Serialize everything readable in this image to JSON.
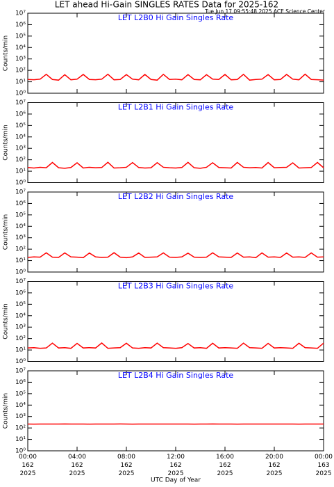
{
  "chart_data": {
    "type": "line",
    "title": "LET ahead Hi-Gain SINGLES RATES Data for 2025-162",
    "subtitle": "Tue Jun 17 09:55:48 2025 ACE Science Center",
    "x_label": "UTC Day of Year",
    "log_y": true,
    "x": [
      0,
      0.5,
      1,
      1.5,
      2,
      2.5,
      3,
      3.5,
      4,
      4.5,
      5,
      5.5,
      6,
      6.5,
      7,
      7.5,
      8,
      8.5,
      9,
      9.5,
      10,
      10.5,
      11,
      11.5,
      12,
      12.5,
      13,
      13.5,
      14,
      14.5,
      15,
      15.5,
      16,
      16.5,
      17,
      17.5,
      18,
      18.5,
      19,
      19.5,
      20,
      20.5,
      21,
      21.5,
      22,
      22.5,
      23,
      23.5,
      24
    ],
    "xlim": [
      0,
      24
    ],
    "xticks": [
      {
        "value": 0,
        "label": "00:00\n162\n2025"
      },
      {
        "value": 4,
        "label": "04:00\n162\n2025"
      },
      {
        "value": 8,
        "label": "08:00\n162\n2025"
      },
      {
        "value": 12,
        "label": "12:00\n162\n2025"
      },
      {
        "value": 16,
        "label": "16:00\n162\n2025"
      },
      {
        "value": 20,
        "label": "20:00\n162\n2025"
      },
      {
        "value": 24,
        "label": "00:00\n163\n2025"
      }
    ],
    "ylim": [
      1,
      10000000
    ],
    "yticks": [
      {
        "value": 1,
        "label": "10⁰"
      },
      {
        "value": 10,
        "label": "10¹"
      },
      {
        "value": 100,
        "label": "10²"
      },
      {
        "value": 1000,
        "label": "10³"
      },
      {
        "value": 10000,
        "label": "10⁴"
      },
      {
        "value": 100000,
        "label": "10⁵"
      },
      {
        "value": 1000000,
        "label": "10⁶"
      },
      {
        "value": 10000000,
        "label": "10⁷"
      }
    ],
    "panels": [
      {
        "title": "LET L2B0 Hi Gain Singles Rate",
        "y_label": "Counts/min",
        "color": "#ff0000",
        "values": [
          16,
          15,
          17,
          45,
          16,
          14,
          42,
          15,
          17,
          44,
          16,
          15,
          17,
          46,
          15,
          16,
          43,
          17,
          15,
          44,
          16,
          14,
          45,
          16,
          17,
          15,
          43,
          16,
          15,
          42,
          17,
          16,
          44,
          15,
          16,
          45,
          14,
          16,
          17,
          43,
          15,
          16,
          44,
          17,
          15,
          46,
          16,
          15,
          14
        ]
      },
      {
        "title": "LET L2B1 Hi Gain Singles Rate",
        "y_label": "Counts/min",
        "color": "#ff0000",
        "values": [
          21,
          19,
          22,
          20,
          58,
          20,
          18,
          21,
          55,
          19,
          22,
          20,
          21,
          60,
          19,
          20,
          22,
          57,
          21,
          19,
          20,
          56,
          22,
          20,
          19,
          21,
          59,
          20,
          18,
          22,
          55,
          21,
          20,
          19,
          58,
          22,
          20,
          21,
          19,
          57,
          20,
          21,
          22,
          54,
          19,
          20,
          21,
          58,
          20
        ]
      },
      {
        "title": "LET L2B2 Hi Gain Singles Rate",
        "y_label": "Counts/min",
        "color": "#ff0000",
        "values": [
          19,
          21,
          20,
          48,
          20,
          19,
          47,
          21,
          20,
          18,
          46,
          21,
          19,
          20,
          49,
          20,
          18,
          21,
          46,
          19,
          20,
          21,
          47,
          20,
          19,
          21,
          45,
          20,
          19,
          20,
          48,
          21,
          20,
          19,
          46,
          20,
          21,
          18,
          47,
          20,
          21,
          19,
          46,
          20,
          21,
          19,
          47,
          20,
          21
        ]
      },
      {
        "title": "LET L2B3 Hi Gain Singles Rate",
        "y_label": "Counts/min",
        "color": "#ff0000",
        "values": [
          15,
          16,
          14,
          15,
          40,
          15,
          16,
          14,
          38,
          15,
          16,
          15,
          41,
          14,
          15,
          16,
          39,
          15,
          14,
          16,
          15,
          40,
          16,
          15,
          14,
          16,
          37,
          15,
          16,
          14,
          39,
          15,
          16,
          15,
          14,
          40,
          16,
          15,
          14,
          38,
          15,
          16,
          15,
          14,
          39,
          16,
          15,
          14,
          40
        ]
      },
      {
        "title": "LET L2B4 Hi Gain Singles Rate",
        "y_label": "Counts/min",
        "color": "#ff0000",
        "values": [
          220,
          218,
          222,
          219,
          221,
          220,
          223,
          219,
          220,
          221,
          218,
          222,
          220,
          219,
          221,
          223,
          220,
          218,
          221,
          220,
          222,
          219,
          220,
          221,
          219,
          222,
          220,
          218,
          221,
          220,
          223,
          219,
          220,
          221,
          218,
          222,
          220,
          219,
          221,
          220,
          222,
          219,
          220,
          221,
          218,
          222,
          220,
          219,
          221
        ]
      }
    ]
  }
}
